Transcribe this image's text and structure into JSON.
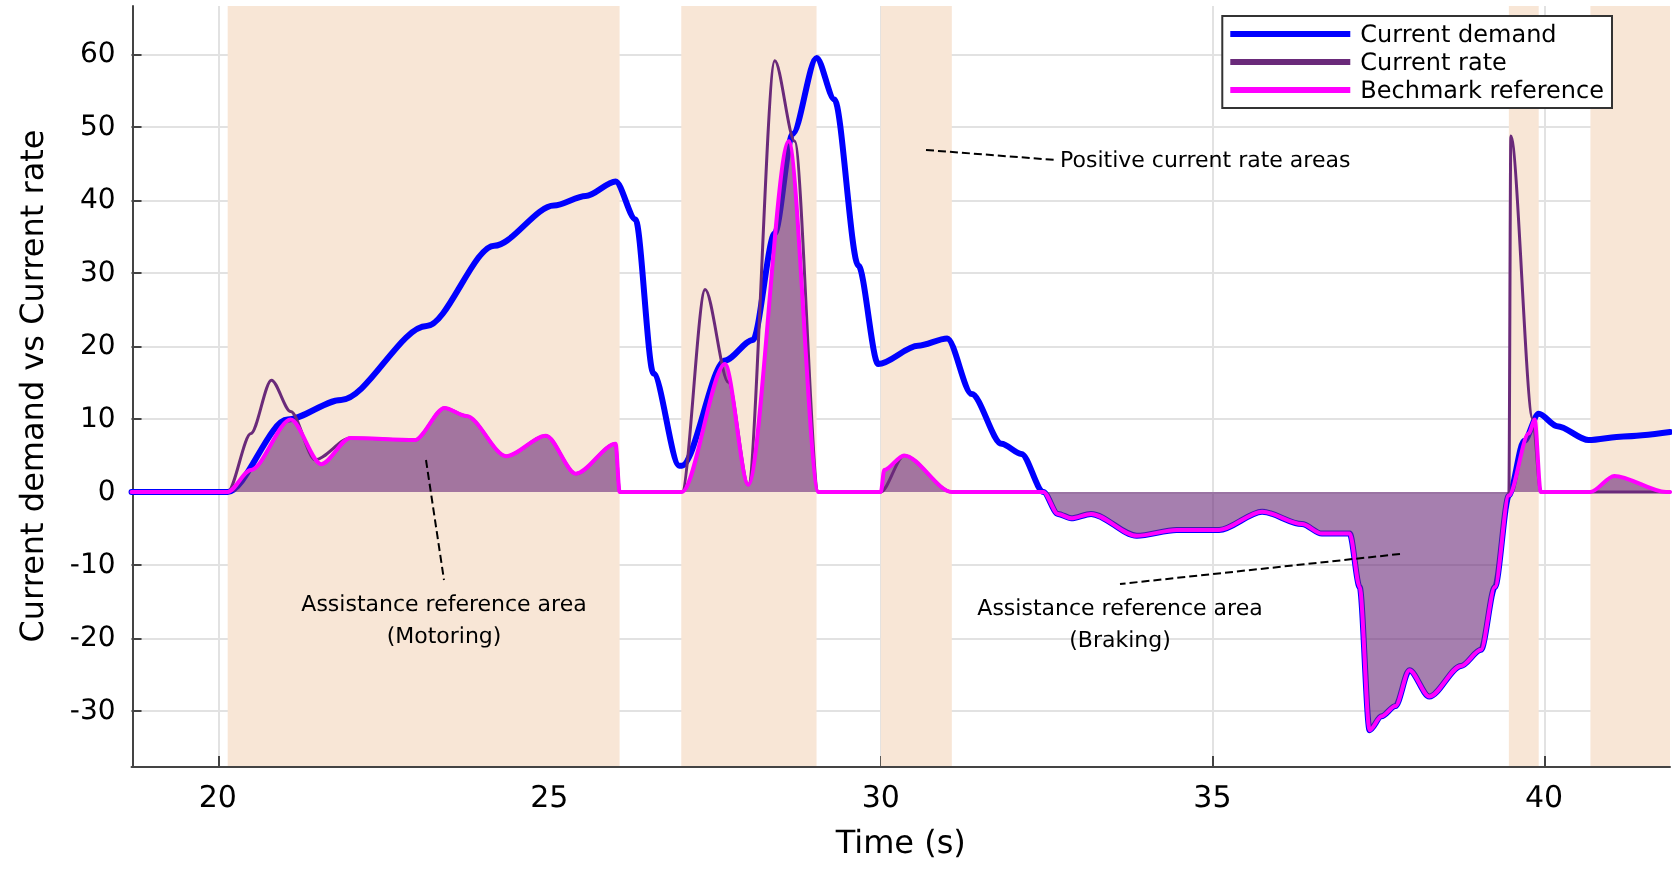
{
  "chart_data": {
    "type": "line",
    "xlabel": "Time (s)",
    "ylabel": "Current demand vs Current rate",
    "xlim": [
      18.7,
      41.9
    ],
    "ylim": [
      -37.5,
      66.5
    ],
    "xticks": [
      20,
      25,
      30,
      35,
      40
    ],
    "yticks": [
      -30,
      -20,
      -10,
      0,
      10,
      20,
      30,
      40,
      50,
      60
    ],
    "grid": true,
    "legend": "top right",
    "series": [
      {
        "name": "Current demand",
        "color": "#0000ff",
        "x": [
          18.7,
          20.15,
          21.05,
          21.86,
          23.15,
          24.17,
          25.07,
          25.55,
          26.0,
          26.3,
          26.57,
          26.96,
          27.0,
          27.65,
          28.07,
          28.4,
          28.67,
          29.03,
          29.3,
          29.66,
          29.96,
          30.56,
          31.0,
          31.37,
          31.82,
          32.12,
          32.45,
          32.67,
          32.87,
          33.17,
          33.86,
          34.46,
          35.1,
          35.75,
          36.35,
          36.65,
          37.07,
          37.22,
          37.37,
          37.55,
          37.76,
          37.97,
          38.27,
          38.75,
          39.05,
          39.26,
          39.47,
          39.7,
          39.92,
          40.2,
          40.67,
          41.2,
          41.9
        ],
        "values": [
          0,
          0,
          9.9,
          12.6,
          22.7,
          33.7,
          39.2,
          40.5,
          42.5,
          37.3,
          16.2,
          3.6,
          3.6,
          18,
          20.8,
          35.4,
          49,
          59.4,
          53.7,
          31,
          17.5,
          20,
          21,
          13.4,
          6.6,
          5.2,
          0,
          -3,
          -3.6,
          -3,
          -6,
          -5.2,
          -5.2,
          -2.7,
          -4.4,
          -5.7,
          -5.7,
          -13,
          -32.6,
          -30.7,
          -29.3,
          -24.4,
          -28,
          -23.8,
          -21.6,
          -13,
          -0.5,
          7,
          10.7,
          9,
          7.1,
          7.6,
          8.2
        ]
      },
      {
        "name": "Current rate",
        "color": "#6a2a7a",
        "x": [
          18.7,
          20.15,
          20.5,
          20.81,
          21.1,
          21.47,
          22.0,
          22.97,
          23.42,
          23.75,
          24.35,
          24.95,
          25.4,
          26.0,
          26.06,
          27.0,
          27.35,
          27.7,
          28.0,
          28.4,
          28.7,
          29.06,
          30.0,
          30.35,
          31.07,
          32.45,
          32.67,
          32.87,
          33.17,
          33.86,
          34.46,
          35.1,
          35.75,
          36.35,
          36.65,
          37.07,
          37.22,
          37.37,
          37.55,
          37.76,
          37.97,
          38.27,
          38.75,
          39.05,
          39.26,
          39.47,
          39.5,
          39.83,
          39.95,
          41.9
        ],
        "values": [
          0,
          0,
          8,
          15.3,
          11,
          4.4,
          7.4,
          7.1,
          11.5,
          10.4,
          4.9,
          7.7,
          2.5,
          6.6,
          0,
          0,
          27.7,
          15,
          1,
          59,
          48,
          0,
          0,
          5,
          0,
          0,
          -3,
          -3.6,
          -3,
          -6,
          -5.2,
          -5.2,
          -2.7,
          -4.4,
          -5.7,
          -5.7,
          -13,
          -32.6,
          -30.7,
          -29.3,
          -24.4,
          -28,
          -23.8,
          -21.6,
          -13,
          -0.5,
          48.7,
          10,
          0,
          0
        ]
      },
      {
        "name": "Bechmark reference",
        "type": "area",
        "color": "#ff00ff",
        "x": [
          18.7,
          20.15,
          20.5,
          21.1,
          21.56,
          22.0,
          22.97,
          23.42,
          23.75,
          24.35,
          24.95,
          25.4,
          26.0,
          26.06,
          27.0,
          27.65,
          28.0,
          28.61,
          29.06,
          30.0,
          30.05,
          30.35,
          31.07,
          32.45,
          32.67,
          32.87,
          33.17,
          33.86,
          34.46,
          35.1,
          35.75,
          36.35,
          36.65,
          37.07,
          37.22,
          37.37,
          37.55,
          37.76,
          37.97,
          38.27,
          38.75,
          39.05,
          39.26,
          39.47,
          39.77,
          39.86,
          39.95,
          40.7,
          41.06,
          41.84,
          41.9
        ],
        "values": [
          0,
          0,
          3,
          9.9,
          3.8,
          7.4,
          7.1,
          11.5,
          10.4,
          4.9,
          7.7,
          2.5,
          6.6,
          0,
          0,
          17.5,
          1,
          48,
          0,
          0,
          3,
          5,
          0,
          0,
          -3,
          -3.6,
          -3,
          -6,
          -5.2,
          -5.2,
          -2.7,
          -4.4,
          -5.7,
          -5.7,
          -13,
          -32.6,
          -30.7,
          -29.3,
          -24.4,
          -28,
          -23.8,
          -21.6,
          -13,
          -0.5,
          8,
          9.9,
          0,
          0,
          2.2,
          0,
          0
        ]
      }
    ],
    "bands": [
      {
        "axis": "x",
        "from": 20.15,
        "to": 26.06,
        "color": "#f8e6d6"
      },
      {
        "axis": "x",
        "from": 26.99,
        "to": 29.03,
        "color": "#f8e6d6"
      },
      {
        "axis": "x",
        "from": 30.0,
        "to": 31.07,
        "color": "#f8e6d6"
      },
      {
        "axis": "x",
        "from": 39.47,
        "to": 39.92,
        "color": "#f8e6d6"
      },
      {
        "axis": "x",
        "from": 40.7,
        "to": 41.9,
        "color": "#f8e6d6"
      }
    ],
    "annotations": [
      "Positive current rate areas",
      "Assistance reference area\n(Motoring)",
      "Assistance reference area\n(Braking)"
    ]
  }
}
